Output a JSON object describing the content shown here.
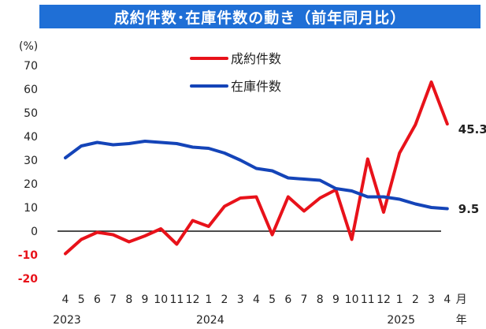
{
  "chart_data": {
    "type": "line",
    "title": "成約件数･在庫件数の動き（前年同月比）",
    "ylabel": "(%)",
    "ylim": [
      -20,
      70
    ],
    "yticks": [
      70,
      60,
      50,
      40,
      30,
      20,
      10,
      0,
      -10,
      -20
    ],
    "x_month_labels": [
      "4",
      "5",
      "6",
      "7",
      "8",
      "9",
      "10",
      "11",
      "12",
      "1",
      "2",
      "3",
      "4",
      "5",
      "6",
      "7",
      "8",
      "9",
      "10",
      "11",
      "12",
      "1",
      "2",
      "3",
      "4"
    ],
    "x_unit_month": "月",
    "x_year_labels": [
      {
        "label": "2023",
        "index": 0
      },
      {
        "label": "2024",
        "index": 9
      },
      {
        "label": "2025",
        "index": 21
      }
    ],
    "x_unit_year": "年",
    "x": [
      "2023-04",
      "2023-05",
      "2023-06",
      "2023-07",
      "2023-08",
      "2023-09",
      "2023-10",
      "2023-11",
      "2023-12",
      "2024-01",
      "2024-02",
      "2024-03",
      "2024-04",
      "2024-05",
      "2024-06",
      "2024-07",
      "2024-08",
      "2024-09",
      "2024-10",
      "2024-11",
      "2024-12",
      "2025-01",
      "2025-02",
      "2025-03",
      "2025-04"
    ],
    "series": [
      {
        "name": "成約件数",
        "color": "#e8121a",
        "values": [
          -9.5,
          -3.5,
          -0.5,
          -1.5,
          -4.5,
          -2,
          1,
          -5.5,
          4.5,
          2,
          10.5,
          14,
          14.5,
          -1.5,
          14.5,
          8.5,
          14,
          17.5,
          -3.5,
          30.5,
          8,
          33,
          45,
          63,
          45.3
        ],
        "end_label": "45.3"
      },
      {
        "name": "在庫件数",
        "color": "#1444b8",
        "values": [
          31,
          36,
          37.5,
          36.5,
          37,
          38,
          37.5,
          37,
          35.5,
          35,
          33,
          30,
          26.5,
          25.5,
          22.5,
          22,
          21.5,
          18,
          17,
          14.5,
          14.5,
          13.5,
          11.5,
          10,
          9.5
        ],
        "end_label": "9.5"
      }
    ],
    "zero_line": true,
    "grid": false,
    "legend_position": "top-center"
  }
}
